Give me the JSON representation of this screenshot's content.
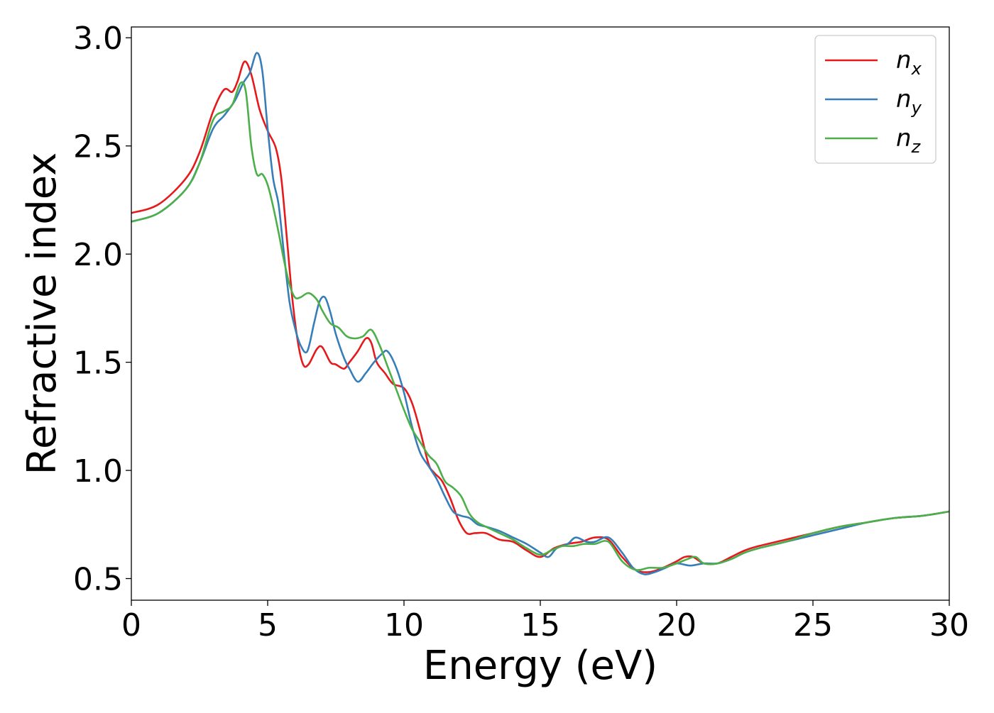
{
  "chart_data": {
    "type": "line",
    "title": "",
    "xlabel": "Energy (eV)",
    "ylabel": "Refractive index",
    "xlim": [
      0,
      30
    ],
    "ylim": [
      0.4,
      3.05
    ],
    "xticks": [
      0,
      5,
      10,
      15,
      20,
      25,
      30
    ],
    "yticks": [
      0.5,
      1.0,
      1.5,
      2.0,
      2.5,
      3.0
    ],
    "xtick_labels": [
      "0",
      "5",
      "10",
      "15",
      "20",
      "25",
      "30"
    ],
    "ytick_labels": [
      "0.5",
      "1.0",
      "1.5",
      "2.0",
      "2.5",
      "3.0"
    ],
    "grid": false,
    "legend_position": "top-right",
    "series": [
      {
        "name": "n",
        "subscript": "x",
        "color": "#e41a1c",
        "x": [
          0,
          1,
          2,
          2.5,
          3,
          3.4,
          3.7,
          3.9,
          4.15,
          4.4,
          4.7,
          5.0,
          5.3,
          5.5,
          5.7,
          5.9,
          6.1,
          6.3,
          6.5,
          6.8,
          7.0,
          7.3,
          7.5,
          7.8,
          8.0,
          8.3,
          8.6,
          8.8,
          9.0,
          9.3,
          9.6,
          10.0,
          10.3,
          10.6,
          10.9,
          11.1,
          11.4,
          11.7,
          12.0,
          12.3,
          12.6,
          13.0,
          13.5,
          14.0,
          14.5,
          15.0,
          15.5,
          16.0,
          16.5,
          17.0,
          17.5,
          18.0,
          18.5,
          19.0,
          19.5,
          20.0,
          20.3,
          20.6,
          21.0,
          21.5,
          22.0,
          22.5,
          23.0,
          24.0,
          25.0,
          26.0,
          27.0,
          28.0,
          29.0,
          30.0
        ],
        "y": [
          2.19,
          2.23,
          2.35,
          2.47,
          2.66,
          2.76,
          2.75,
          2.8,
          2.89,
          2.83,
          2.67,
          2.57,
          2.49,
          2.35,
          2.08,
          1.8,
          1.6,
          1.49,
          1.49,
          1.56,
          1.57,
          1.5,
          1.49,
          1.47,
          1.5,
          1.55,
          1.61,
          1.59,
          1.5,
          1.45,
          1.4,
          1.38,
          1.31,
          1.18,
          1.03,
          0.99,
          0.95,
          0.87,
          0.77,
          0.71,
          0.71,
          0.71,
          0.68,
          0.67,
          0.63,
          0.6,
          0.64,
          0.66,
          0.67,
          0.69,
          0.68,
          0.6,
          0.54,
          0.53,
          0.55,
          0.58,
          0.6,
          0.6,
          0.57,
          0.57,
          0.6,
          0.63,
          0.65,
          0.68,
          0.71,
          0.74,
          0.76,
          0.78,
          0.79,
          0.81
        ]
      },
      {
        "name": "n",
        "subscript": "y",
        "color": "#377eb8",
        "x": [
          0,
          1,
          2,
          2.5,
          3,
          3.4,
          3.8,
          4.1,
          4.35,
          4.6,
          4.8,
          5.0,
          5.2,
          5.4,
          5.6,
          5.8,
          6.0,
          6.2,
          6.45,
          6.7,
          6.9,
          7.1,
          7.3,
          7.5,
          7.8,
          8.0,
          8.3,
          8.6,
          8.9,
          9.2,
          9.4,
          9.7,
          10.0,
          10.3,
          10.6,
          10.9,
          11.2,
          11.5,
          11.8,
          12.1,
          12.4,
          12.7,
          13.0,
          13.5,
          14.0,
          14.5,
          15.0,
          15.3,
          15.6,
          16.0,
          16.3,
          16.7,
          17.0,
          17.5,
          18.0,
          18.4,
          18.8,
          19.2,
          19.6,
          20.0,
          20.5,
          21.0,
          21.5,
          22.0,
          22.5,
          23.0,
          24.0,
          25.0,
          26.0,
          27.0,
          28.0,
          29.0,
          30.0
        ],
        "y": [
          2.15,
          2.19,
          2.3,
          2.42,
          2.58,
          2.64,
          2.71,
          2.79,
          2.84,
          2.93,
          2.85,
          2.58,
          2.35,
          2.23,
          2.0,
          1.78,
          1.66,
          1.58,
          1.55,
          1.68,
          1.78,
          1.8,
          1.73,
          1.63,
          1.52,
          1.47,
          1.41,
          1.45,
          1.5,
          1.54,
          1.55,
          1.48,
          1.36,
          1.2,
          1.08,
          1.02,
          0.96,
          0.88,
          0.81,
          0.79,
          0.78,
          0.75,
          0.74,
          0.72,
          0.69,
          0.66,
          0.62,
          0.6,
          0.64,
          0.66,
          0.69,
          0.67,
          0.67,
          0.69,
          0.62,
          0.55,
          0.52,
          0.53,
          0.55,
          0.57,
          0.56,
          0.57,
          0.57,
          0.59,
          0.62,
          0.64,
          0.67,
          0.7,
          0.73,
          0.76,
          0.78,
          0.79,
          0.81
        ]
      },
      {
        "name": "n",
        "subscript": "z",
        "color": "#4daf4a",
        "x": [
          0,
          1,
          2,
          2.5,
          3,
          3.4,
          3.7,
          4.0,
          4.2,
          4.4,
          4.6,
          4.8,
          5.0,
          5.2,
          5.4,
          5.6,
          5.8,
          6.0,
          6.2,
          6.5,
          6.8,
          7.0,
          7.3,
          7.6,
          7.9,
          8.2,
          8.5,
          8.8,
          9.1,
          9.4,
          9.7,
          10.0,
          10.3,
          10.6,
          10.9,
          11.2,
          11.5,
          11.8,
          12.1,
          12.4,
          12.7,
          13.0,
          13.5,
          14.0,
          14.5,
          15.0,
          15.4,
          15.8,
          16.2,
          16.6,
          17.0,
          17.5,
          18.0,
          18.5,
          19.0,
          19.5,
          20.0,
          20.4,
          20.7,
          21.0,
          21.5,
          22.0,
          22.5,
          23.0,
          24.0,
          25.0,
          26.0,
          27.0,
          28.0,
          29.0,
          30.0
        ],
        "y": [
          2.15,
          2.19,
          2.3,
          2.42,
          2.62,
          2.66,
          2.69,
          2.79,
          2.75,
          2.5,
          2.37,
          2.37,
          2.32,
          2.22,
          2.1,
          1.97,
          1.86,
          1.8,
          1.8,
          1.82,
          1.79,
          1.74,
          1.68,
          1.66,
          1.62,
          1.61,
          1.62,
          1.65,
          1.58,
          1.48,
          1.38,
          1.28,
          1.19,
          1.13,
          1.07,
          1.03,
          0.95,
          0.92,
          0.88,
          0.8,
          0.76,
          0.74,
          0.71,
          0.68,
          0.64,
          0.61,
          0.63,
          0.65,
          0.65,
          0.66,
          0.66,
          0.67,
          0.58,
          0.54,
          0.55,
          0.55,
          0.57,
          0.59,
          0.6,
          0.57,
          0.57,
          0.59,
          0.62,
          0.64,
          0.67,
          0.71,
          0.74,
          0.76,
          0.78,
          0.79,
          0.81
        ]
      }
    ]
  }
}
